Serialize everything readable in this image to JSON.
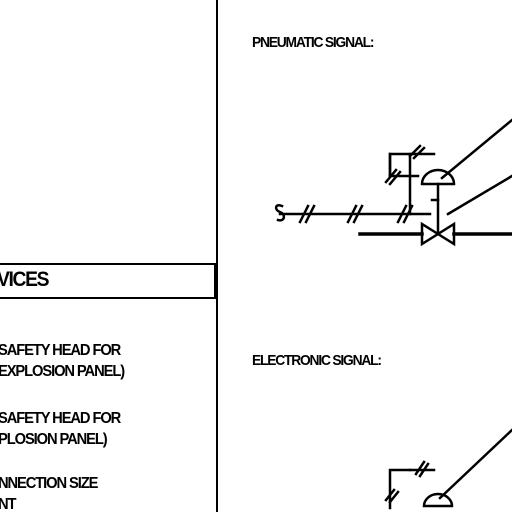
{
  "left_panel": {
    "header": "VICES",
    "items": [
      {
        "line1": "SAFETY HEAD FOR",
        "line2": "EXPLOSION PANEL)"
      },
      {
        "line1": "SAFETY HEAD FOR",
        "line2": "PLOSION PANEL)"
      },
      {
        "line1": "NNECTION SIZE",
        "line2": "NT"
      }
    ]
  },
  "right_panel": {
    "pneumatic_label": "PNEUMATIC SIGNAL:",
    "electronic_label": "ELECTRONIC SIGNAL:"
  }
}
